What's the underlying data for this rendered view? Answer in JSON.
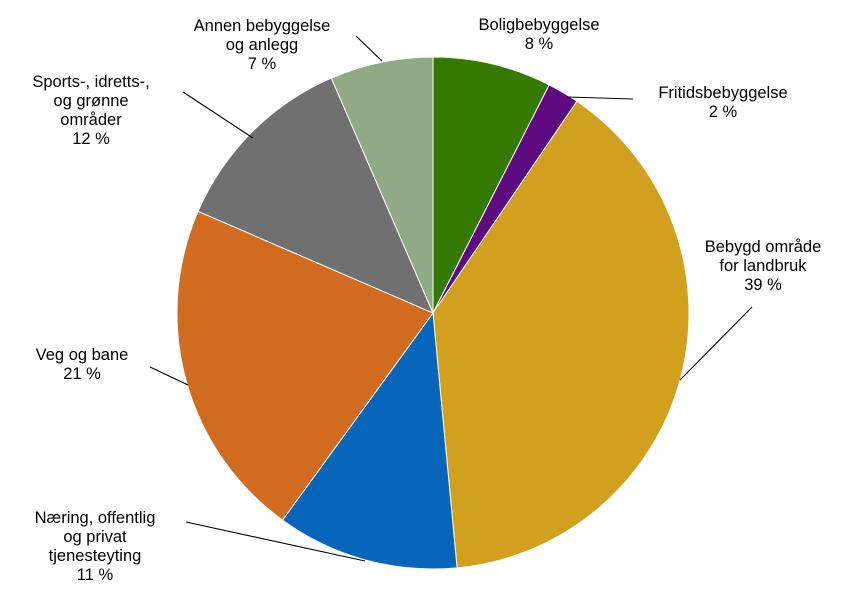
{
  "chart_data": {
    "type": "pie",
    "title": "",
    "start_angle_deg": 0,
    "direction": "clockwise",
    "legend": "none",
    "slices": [
      {
        "key": "bolig",
        "label_lines": [
          "Boligbebyggelse"
        ],
        "value": 7.5,
        "value_label": "8 %",
        "color": "#357A00"
      },
      {
        "key": "fritid",
        "label_lines": [
          "Fritidsbebyggelse"
        ],
        "value": 2.0,
        "value_label": "2 %",
        "color": "#5E0A80"
      },
      {
        "key": "landbruk",
        "label_lines": [
          "Bebygd område",
          "for landbruk"
        ],
        "value": 39.0,
        "value_label": "39 %",
        "color": "#D1A01F"
      },
      {
        "key": "naering",
        "label_lines": [
          "Næring, offentlig",
          "og privat",
          "tjenesteyting"
        ],
        "value": 11.5,
        "value_label": "11 %",
        "color": "#0766BA"
      },
      {
        "key": "veg",
        "label_lines": [
          "Veg og bane"
        ],
        "value": 21.5,
        "value_label": "21 %",
        "color": "#D16B1F"
      },
      {
        "key": "sport",
        "label_lines": [
          "Sports-, idretts-,",
          "og grønne",
          "områder"
        ],
        "value": 12.0,
        "value_label": "12 %",
        "color": "#707070"
      },
      {
        "key": "annen",
        "label_lines": [
          "Annen bebyggelse",
          "og anlegg"
        ],
        "value": 6.5,
        "value_label": "7 %",
        "color": "#8FAA85"
      }
    ]
  }
}
